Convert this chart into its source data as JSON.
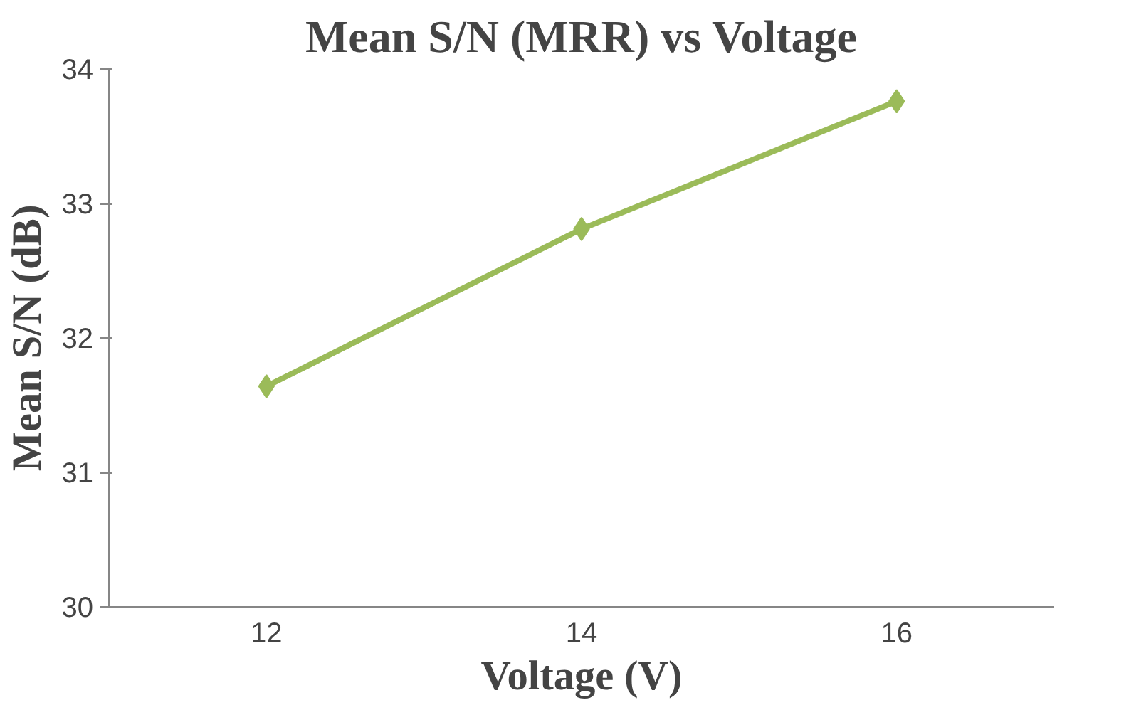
{
  "chart_data": {
    "type": "line",
    "title": "Mean S/N (MRR) vs Voltage",
    "xlabel": "Voltage (V)",
    "ylabel": "Mean S/N (dB)",
    "categories": [
      "12",
      "14",
      "16"
    ],
    "series": [
      {
        "color": "#9bbb59",
        "values": [
          31.64,
          32.81,
          33.76
        ]
      }
    ],
    "ylim": [
      30,
      34
    ],
    "yticks": [
      30,
      31,
      32,
      33,
      34
    ],
    "grid": false,
    "marker": "diamond",
    "line_style": "solid"
  }
}
